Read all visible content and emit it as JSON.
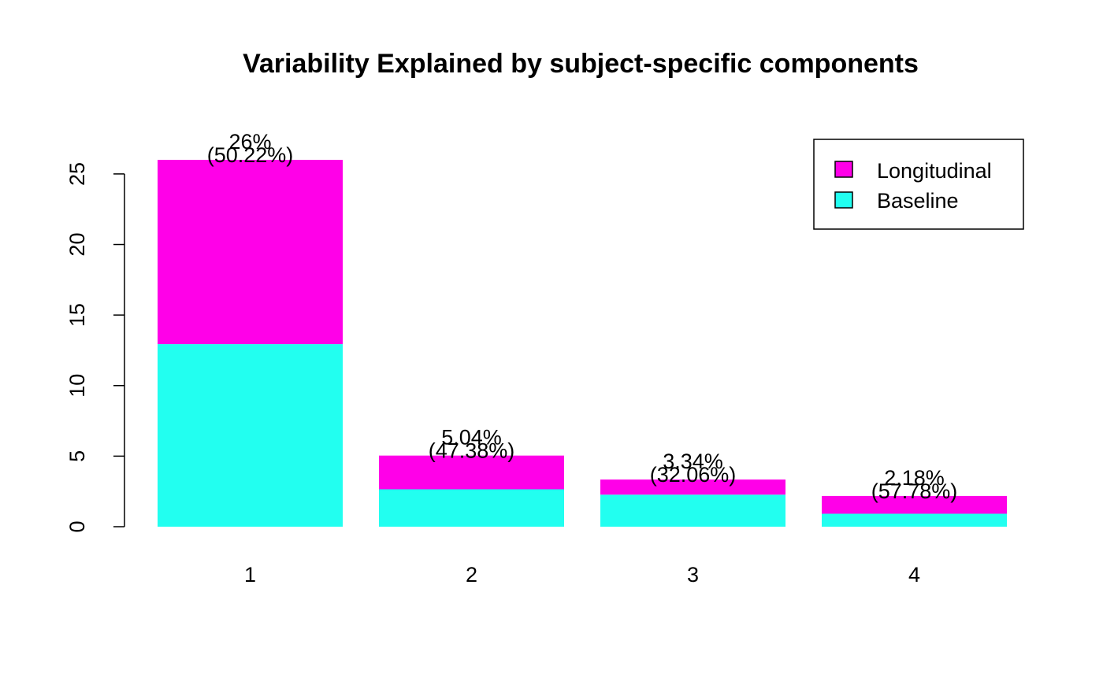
{
  "chart_data": {
    "type": "bar",
    "stacked": true,
    "title": "Variability Explained by subject-specific components",
    "xlabel": "",
    "ylabel": "",
    "categories": [
      "1",
      "2",
      "3",
      "4"
    ],
    "series": [
      {
        "name": "Baseline",
        "color": "#22FFF0",
        "values": [
          12.94,
          2.65,
          2.27,
          0.92
        ]
      },
      {
        "name": "Longitudinal",
        "color": "#FF00E8",
        "values": [
          13.06,
          2.39,
          1.07,
          1.26
        ]
      }
    ],
    "totals": [
      26,
      5.04,
      3.34,
      2.18
    ],
    "bar_labels": [
      {
        "total": "26%",
        "share": "(50.22%)"
      },
      {
        "total": "5.04%",
        "share": "(47.38%)"
      },
      {
        "total": "3.34%",
        "share": "(32.06%)"
      },
      {
        "total": "2.18%",
        "share": "(57.78%)"
      }
    ],
    "yticks": [
      "0",
      "5",
      "10",
      "15",
      "20",
      "25"
    ],
    "ylim": [
      0,
      26
    ],
    "legend": {
      "position": "top-right",
      "entries": [
        {
          "label": "Longitudinal",
          "color": "#FF00E8"
        },
        {
          "label": "Baseline",
          "color": "#22FFF0"
        }
      ]
    },
    "grid": false
  }
}
